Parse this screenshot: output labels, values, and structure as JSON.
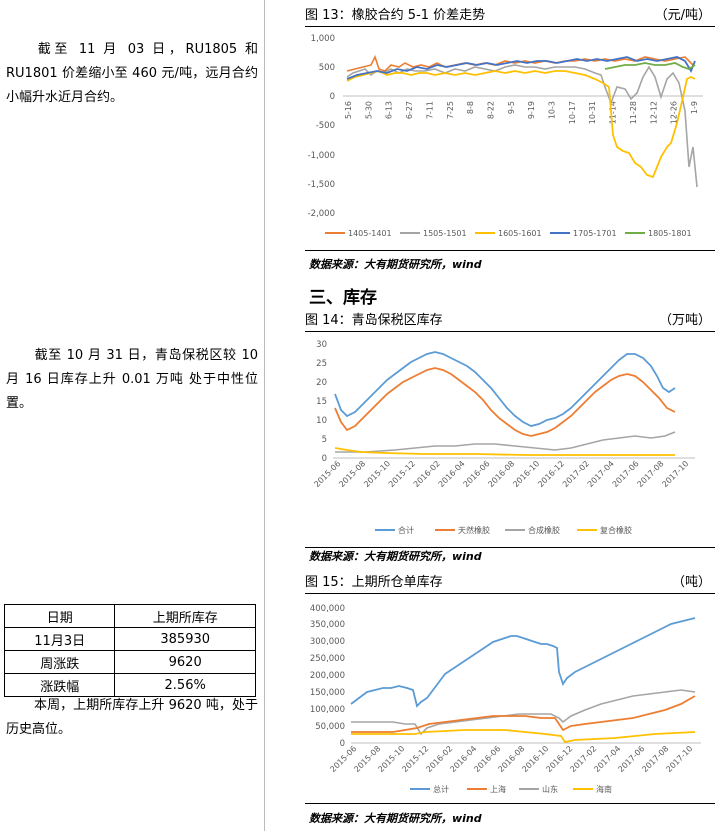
{
  "left": {
    "p1": "截至 11 月 03 日，RU1805 和 RU1801 价差缩小至 460 元/吨，远月合约小幅升水近月合约。",
    "p2": "截至 10 月 31 日，青岛保税区较 10 月 16 日库存上升 0.01 万吨 处于中性位置。",
    "p3": "本周，上期所库存上升 9620 吨，处于历史高位。",
    "table": {
      "headers": [
        "日期",
        "上期所库存"
      ],
      "rows": [
        [
          "11月3日",
          "385930"
        ],
        [
          "周涨跌",
          "9620"
        ],
        [
          "涨跌幅",
          "2.56%"
        ]
      ]
    }
  },
  "section_heading": "三、库存",
  "fig13": {
    "title": "图 13：橡胶合约 5-1 价差走势",
    "unit": "（元/吨）",
    "source": "数据来源：大有期货研究所，wind",
    "chart_data": {
      "type": "line",
      "yticks": [
        "1,000",
        "500",
        "0",
        "-500",
        "-1,000",
        "-1,500",
        "-2,000"
      ],
      "ylim": [
        -2000,
        1000
      ],
      "xticks": [
        "5-16",
        "5-30",
        "6-13",
        "6-27",
        "7-11",
        "7-25",
        "8-8",
        "8-22",
        "9-5",
        "9-19",
        "10-3",
        "10-17",
        "10-31",
        "11-14",
        "11-28",
        "12-12",
        "12-26",
        "1-9"
      ],
      "series": [
        {
          "name": "1405-1401",
          "color": "#ED7D31"
        },
        {
          "name": "1505-1501",
          "color": "#A5A5A5"
        },
        {
          "name": "1605-1601",
          "color": "#FFC000"
        },
        {
          "name": "1705-1701",
          "color": "#4472C4"
        },
        {
          "name": "1805-1801",
          "color": "#70AD47"
        }
      ]
    }
  },
  "fig14": {
    "title": "图 14：青岛保税区库存",
    "unit": "（万吨）",
    "source": "数据来源：大有期货研究所，wind",
    "chart_data": {
      "type": "line",
      "yticks": [
        "30",
        "25",
        "20",
        "15",
        "10",
        "5",
        "0"
      ],
      "ylim": [
        0,
        30
      ],
      "xticks": [
        "2015-06",
        "2015-08",
        "2015-10",
        "2015-12",
        "2016-02",
        "2016-04",
        "2016-06",
        "2016-08",
        "2016-10",
        "2016-12",
        "2017-02",
        "2017-04",
        "2017-06",
        "2017-08",
        "2017-10"
      ],
      "series": [
        {
          "name": "合计",
          "color": "#5B9BD5"
        },
        {
          "name": "天然橡胶",
          "color": "#ED7D31"
        },
        {
          "name": "合成橡胶",
          "color": "#A5A5A5"
        },
        {
          "name": "复合橡胶",
          "color": "#FFC000"
        }
      ]
    }
  },
  "fig15": {
    "title": "图 15：上期所仓单库存",
    "unit": "（吨）",
    "source": "数据来源：大有期货研究所，wind",
    "chart_data": {
      "type": "line",
      "yticks": [
        "400,000",
        "350,000",
        "300,000",
        "250,000",
        "200,000",
        "150,000",
        "100,000",
        "50,000",
        "0"
      ],
      "ylim": [
        0,
        400000
      ],
      "xticks": [
        "2015-06",
        "2015-08",
        "2015-10",
        "2015-12",
        "2016-02",
        "2016-04",
        "2016-06",
        "2016-08",
        "2016-10",
        "2016-12",
        "2017-02",
        "2017-04",
        "2017-06",
        "2017-08",
        "2017-10"
      ],
      "series": [
        {
          "name": "总计",
          "color": "#5B9BD5"
        },
        {
          "name": "上海",
          "color": "#ED7D31"
        },
        {
          "name": "山东",
          "color": "#A5A5A5"
        },
        {
          "name": "海南",
          "color": "#FFC000"
        }
      ]
    }
  }
}
